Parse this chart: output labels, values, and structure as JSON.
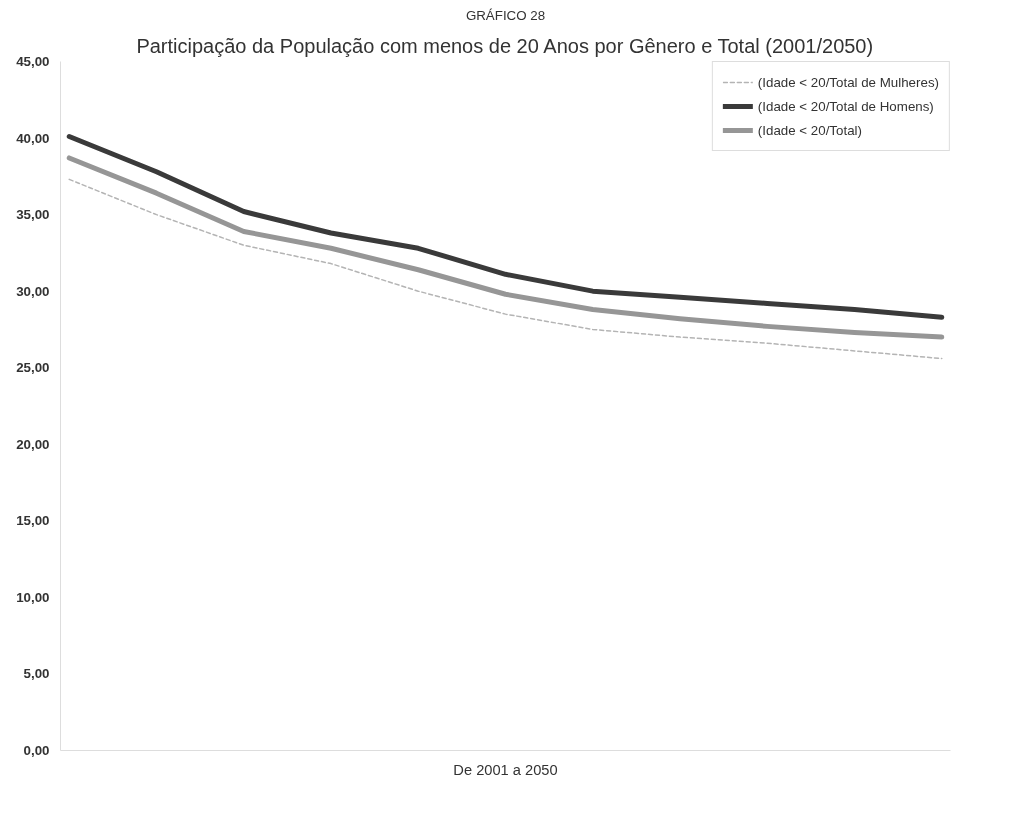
{
  "chart_data": {
    "type": "line",
    "subtitle": "GRÁFICO 28",
    "title": "Participação da População com menos de 20 Anos por Gênero e Total (2001/2050)",
    "xlabel": "De 2001 a 2050",
    "categories": [
      null,
      null,
      null,
      null,
      null,
      null,
      null,
      null,
      null,
      null,
      null
    ],
    "series": [
      {
        "name": "(Idade < 20/Total de Mulheres)",
        "color": "#b4b4b4",
        "line_style": "dashed",
        "values": [
          37.3,
          35.0,
          33.0,
          31.8,
          30.0,
          28.5,
          27.5,
          27.0,
          26.6,
          26.1,
          25.6
        ]
      },
      {
        "name": "(Idade < 20/Total de Homens)",
        "color": "#3a3a3a",
        "line_style": "solid",
        "values": [
          40.1,
          37.8,
          35.2,
          33.8,
          32.8,
          31.1,
          30.0,
          29.6,
          29.2,
          28.8,
          28.3
        ]
      },
      {
        "name": "(Idade < 20/Total)",
        "color": "#969696",
        "line_style": "solid",
        "values": [
          38.7,
          36.4,
          33.9,
          32.8,
          31.4,
          29.8,
          28.8,
          28.2,
          27.7,
          27.3,
          27.0
        ]
      }
    ],
    "ylim": [
      0,
      45
    ],
    "yticks": [
      {
        "value": 0,
        "label": "0,00"
      },
      {
        "value": 5,
        "label": "5,00"
      },
      {
        "value": 10,
        "label": "10,00"
      },
      {
        "value": 15,
        "label": "15,00"
      },
      {
        "value": 20,
        "label": "20,00"
      },
      {
        "value": 25,
        "label": "25,00"
      },
      {
        "value": 30,
        "label": "30,00"
      },
      {
        "value": 35,
        "label": "35,00"
      },
      {
        "value": 40,
        "label": "40,00"
      },
      {
        "value": 45,
        "label": "45,00"
      }
    ],
    "tick_labels": "y",
    "grid": false,
    "legend": "top right",
    "marker": "none"
  }
}
